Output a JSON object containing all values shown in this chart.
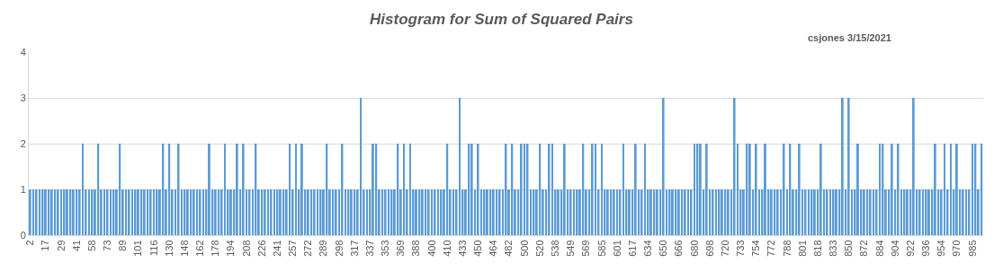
{
  "chart_data": {
    "type": "bar",
    "title": "Histogram for Sum of Squared Pairs",
    "annotations": [
      "csjones 3/15/2021"
    ],
    "color": "#5b9bd5",
    "ylim": [
      0,
      4
    ],
    "yticks": [
      0,
      1,
      2,
      3,
      4
    ],
    "grid": "y",
    "categories": [
      "2",
      null,
      null,
      null,
      null,
      "17",
      null,
      null,
      null,
      null,
      "29",
      null,
      null,
      null,
      null,
      "41",
      null,
      null,
      null,
      null,
      "58",
      null,
      null,
      null,
      null,
      "73",
      null,
      null,
      null,
      null,
      "89",
      null,
      null,
      null,
      null,
      "101",
      null,
      null,
      null,
      null,
      "116",
      null,
      null,
      null,
      null,
      "130",
      null,
      null,
      null,
      null,
      "148",
      null,
      null,
      null,
      null,
      "162",
      null,
      null,
      null,
      null,
      "178",
      null,
      null,
      null,
      null,
      "194",
      null,
      null,
      null,
      null,
      "208",
      null,
      null,
      null,
      null,
      "226",
      null,
      null,
      null,
      null,
      "241",
      null,
      null,
      null,
      null,
      "257",
      null,
      null,
      null,
      null,
      "272",
      null,
      null,
      null,
      null,
      "289",
      null,
      null,
      null,
      null,
      "298",
      null,
      null,
      null,
      null,
      "317",
      null,
      null,
      null,
      null,
      "337",
      null,
      null,
      null,
      null,
      "353",
      null,
      null,
      null,
      null,
      "369",
      null,
      null,
      null,
      null,
      "388",
      null,
      null,
      null,
      null,
      "400",
      null,
      null,
      null,
      null,
      "410",
      null,
      null,
      null,
      null,
      "433",
      null,
      null,
      null,
      null,
      "450",
      null,
      null,
      null,
      null,
      "464",
      null,
      null,
      null,
      null,
      "482",
      null,
      null,
      null,
      null,
      "500",
      null,
      null,
      null,
      null,
      "520",
      null,
      null,
      null,
      null,
      "538",
      null,
      null,
      null,
      null,
      "549",
      null,
      null,
      null,
      null,
      "569",
      null,
      null,
      null,
      null,
      "585",
      null,
      null,
      null,
      null,
      "601",
      null,
      null,
      null,
      null,
      "617",
      null,
      null,
      null,
      null,
      "634",
      null,
      null,
      null,
      null,
      "650",
      null,
      null,
      null,
      null,
      "666",
      null,
      null,
      null,
      null,
      "680",
      null,
      null,
      null,
      null,
      "698",
      null,
      null,
      null,
      null,
      "720",
      null,
      null,
      null,
      null,
      "733",
      null,
      null,
      null,
      null,
      "754",
      null,
      null,
      null,
      null,
      "772",
      null,
      null,
      null,
      null,
      "788",
      null,
      null,
      null,
      null,
      "801",
      null,
      null,
      null,
      null,
      "818",
      null,
      null,
      null,
      null,
      "833",
      null,
      null,
      null,
      null,
      "850",
      null,
      null,
      null,
      null,
      "872",
      null,
      null,
      null,
      null,
      "884",
      null,
      null,
      null,
      null,
      "904",
      null,
      null,
      null,
      null,
      "922",
      null,
      null,
      null,
      null,
      "936",
      null,
      null,
      null,
      null,
      "954",
      null,
      null,
      null,
      null,
      "970",
      null,
      null,
      null,
      null,
      "985",
      null,
      null,
      null
    ],
    "values": [
      1,
      1,
      1,
      1,
      1,
      1,
      1,
      1,
      1,
      1,
      1,
      1,
      1,
      1,
      1,
      1,
      1,
      2,
      1,
      1,
      1,
      1,
      2,
      1,
      1,
      1,
      1,
      1,
      1,
      2,
      1,
      1,
      1,
      1,
      1,
      1,
      1,
      1,
      1,
      1,
      1,
      1,
      1,
      2,
      1,
      2,
      1,
      1,
      2,
      1,
      1,
      1,
      1,
      1,
      1,
      1,
      1,
      1,
      2,
      1,
      1,
      1,
      1,
      2,
      1,
      1,
      1,
      2,
      1,
      2,
      1,
      1,
      1,
      2,
      1,
      1,
      1,
      1,
      1,
      1,
      1,
      1,
      1,
      1,
      2,
      1,
      2,
      1,
      2,
      1,
      1,
      1,
      1,
      1,
      1,
      1,
      2,
      1,
      1,
      1,
      1,
      2,
      1,
      1,
      1,
      1,
      1,
      3,
      1,
      1,
      1,
      2,
      2,
      1,
      1,
      1,
      1,
      1,
      1,
      2,
      1,
      2,
      1,
      2,
      1,
      1,
      1,
      1,
      1,
      1,
      1,
      1,
      1,
      1,
      1,
      2,
      1,
      1,
      1,
      3,
      1,
      1,
      2,
      2,
      1,
      2,
      1,
      1,
      1,
      1,
      1,
      1,
      1,
      1,
      2,
      1,
      2,
      1,
      1,
      2,
      2,
      2,
      1,
      1,
      1,
      2,
      1,
      1,
      2,
      2,
      1,
      1,
      1,
      2,
      1,
      1,
      1,
      1,
      1,
      2,
      1,
      1,
      2,
      2,
      1,
      2,
      1,
      1,
      1,
      1,
      1,
      1,
      2,
      1,
      1,
      1,
      2,
      1,
      1,
      2,
      1,
      1,
      1,
      1,
      1,
      3,
      1,
      1,
      1,
      1,
      1,
      1,
      1,
      1,
      1,
      2,
      2,
      2,
      1,
      2,
      1,
      1,
      1,
      1,
      1,
      1,
      1,
      1,
      3,
      2,
      1,
      1,
      2,
      2,
      1,
      2,
      1,
      1,
      2,
      1,
      1,
      1,
      1,
      1,
      2,
      1,
      2,
      1,
      1,
      2,
      1,
      1,
      1,
      1,
      1,
      1,
      2,
      1,
      1,
      1,
      1,
      1,
      1,
      3,
      1,
      3,
      1,
      1,
      2,
      1,
      1,
      1,
      1,
      1,
      1,
      2,
      2,
      1,
      1,
      2,
      1,
      2,
      1,
      1,
      1,
      1,
      3,
      1,
      1,
      1,
      1,
      1,
      1,
      2,
      1,
      1,
      2,
      1,
      2,
      1,
      2,
      1,
      1,
      1,
      1,
      2,
      2,
      1,
      2
    ]
  }
}
